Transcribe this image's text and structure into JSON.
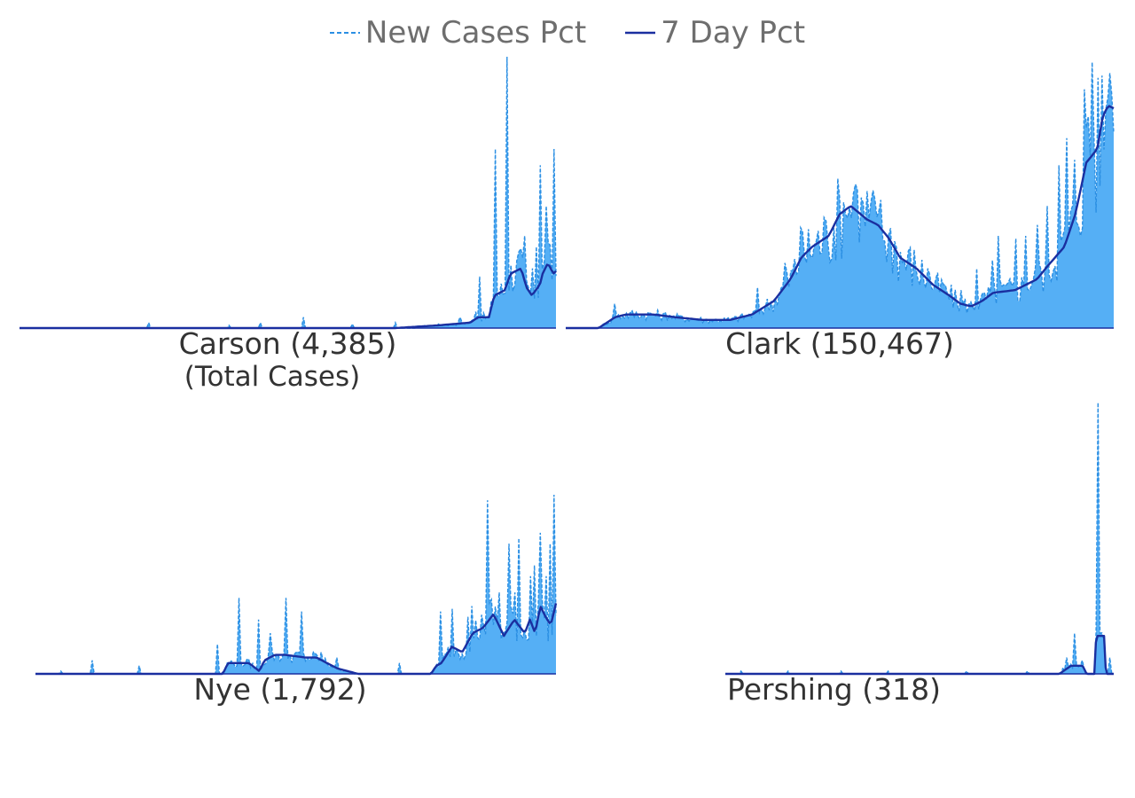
{
  "legend": {
    "daily_label": "New Cases Pct",
    "avg_label": "7 Day Pct"
  },
  "colors": {
    "fill": "#55aff5",
    "daily_line": "#2b8fe3",
    "avg_line": "#1a2fa0",
    "baseline": "#1a2fa0"
  },
  "chart_data": [
    {
      "type": "area",
      "county": "Carson",
      "label": "Carson (4,385)",
      "sublabel": "(Total Cases)",
      "ylim": [
        0,
        1
      ],
      "spikes": [
        [
          0.24,
          0.02
        ],
        [
          0.39,
          0.01
        ],
        [
          0.45,
          0.02
        ],
        [
          0.53,
          0.04
        ],
        [
          0.62,
          0.015
        ],
        [
          0.7,
          0.02
        ],
        [
          0.78,
          0.015
        ],
        [
          0.82,
          0.04
        ],
        [
          0.85,
          0.06
        ],
        [
          0.857,
          0.19
        ],
        [
          0.887,
          0.66
        ],
        [
          0.897,
          0.1
        ],
        [
          0.91,
          1.0
        ],
        [
          0.93,
          0.28
        ],
        [
          0.943,
          0.34
        ],
        [
          0.955,
          0.22
        ],
        [
          0.965,
          0.3
        ],
        [
          0.97,
          0.6
        ],
        [
          0.98,
          0.45
        ],
        [
          0.99,
          0.28
        ],
        [
          0.995,
          0.66
        ]
      ],
      "avg_knots": [
        [
          0,
          0
        ],
        [
          0.7,
          0
        ],
        [
          0.78,
          0.01
        ],
        [
          0.84,
          0.02
        ],
        [
          0.855,
          0.04
        ],
        [
          0.875,
          0.04
        ],
        [
          0.885,
          0.12
        ],
        [
          0.905,
          0.14
        ],
        [
          0.915,
          0.2
        ],
        [
          0.935,
          0.22
        ],
        [
          0.945,
          0.15
        ],
        [
          0.955,
          0.12
        ],
        [
          0.97,
          0.16
        ],
        [
          0.975,
          0.2
        ],
        [
          0.98,
          0.22
        ],
        [
          0.985,
          0.24
        ],
        [
          0.995,
          0.2
        ],
        [
          1.0,
          0.21
        ]
      ]
    },
    {
      "type": "area",
      "county": "Clark",
      "label": "Clark (150,467)",
      "ylim": [
        0,
        1
      ],
      "spikes": [
        [
          0.09,
          0.09
        ],
        [
          0.19,
          0.05
        ],
        [
          0.35,
          0.15
        ],
        [
          0.4,
          0.24
        ],
        [
          0.43,
          0.37
        ],
        [
          0.46,
          0.35
        ],
        [
          0.48,
          0.31
        ],
        [
          0.51,
          0.42
        ],
        [
          0.53,
          0.53
        ],
        [
          0.55,
          0.45
        ],
        [
          0.57,
          0.43
        ],
        [
          0.6,
          0.32
        ],
        [
          0.63,
          0.27
        ],
        [
          0.66,
          0.22
        ],
        [
          0.69,
          0.16
        ],
        [
          0.72,
          0.14
        ],
        [
          0.75,
          0.22
        ],
        [
          0.78,
          0.25
        ],
        [
          0.79,
          0.34
        ],
        [
          0.82,
          0.33
        ],
        [
          0.84,
          0.34
        ],
        [
          0.86,
          0.38
        ],
        [
          0.88,
          0.45
        ],
        [
          0.9,
          0.6
        ],
        [
          0.915,
          0.7
        ],
        [
          0.93,
          0.62
        ],
        [
          0.945,
          0.88
        ],
        [
          0.955,
          0.78
        ],
        [
          0.962,
          0.98
        ],
        [
          0.97,
          0.88
        ],
        [
          0.98,
          0.9
        ],
        [
          0.99,
          0.85
        ],
        [
          0.998,
          0.86
        ]
      ],
      "avg_knots": [
        [
          0,
          0
        ],
        [
          0.06,
          0
        ],
        [
          0.09,
          0.04
        ],
        [
          0.11,
          0.05
        ],
        [
          0.16,
          0.05
        ],
        [
          0.2,
          0.04
        ],
        [
          0.25,
          0.03
        ],
        [
          0.3,
          0.03
        ],
        [
          0.34,
          0.05
        ],
        [
          0.38,
          0.1
        ],
        [
          0.41,
          0.18
        ],
        [
          0.43,
          0.26
        ],
        [
          0.45,
          0.3
        ],
        [
          0.48,
          0.34
        ],
        [
          0.5,
          0.42
        ],
        [
          0.52,
          0.45
        ],
        [
          0.55,
          0.4
        ],
        [
          0.57,
          0.38
        ],
        [
          0.59,
          0.33
        ],
        [
          0.61,
          0.26
        ],
        [
          0.64,
          0.22
        ],
        [
          0.67,
          0.16
        ],
        [
          0.7,
          0.12
        ],
        [
          0.72,
          0.09
        ],
        [
          0.74,
          0.08
        ],
        [
          0.76,
          0.1
        ],
        [
          0.78,
          0.13
        ],
        [
          0.82,
          0.14
        ],
        [
          0.86,
          0.18
        ],
        [
          0.88,
          0.23
        ],
        [
          0.91,
          0.3
        ],
        [
          0.93,
          0.42
        ],
        [
          0.95,
          0.61
        ],
        [
          0.97,
          0.66
        ],
        [
          0.98,
          0.78
        ],
        [
          0.99,
          0.82
        ],
        [
          1.0,
          0.81
        ]
      ]
    },
    {
      "type": "area",
      "county": "Nye",
      "label": "Nye (1,792)",
      "ylim": [
        0,
        1
      ],
      "spikes": [
        [
          0.05,
          0.01
        ],
        [
          0.11,
          0.05
        ],
        [
          0.2,
          0.03
        ],
        [
          0.35,
          0.11
        ],
        [
          0.39,
          0.28
        ],
        [
          0.43,
          0.2
        ],
        [
          0.45,
          0.15
        ],
        [
          0.48,
          0.28
        ],
        [
          0.51,
          0.23
        ],
        [
          0.55,
          0.08
        ],
        [
          0.58,
          0.06
        ],
        [
          0.7,
          0.04
        ],
        [
          0.78,
          0.23
        ],
        [
          0.8,
          0.24
        ],
        [
          0.83,
          0.21
        ],
        [
          0.84,
          0.25
        ],
        [
          0.86,
          0.18
        ],
        [
          0.87,
          0.64
        ],
        [
          0.89,
          0.3
        ],
        [
          0.91,
          0.48
        ],
        [
          0.92,
          0.3
        ],
        [
          0.93,
          0.5
        ],
        [
          0.95,
          0.36
        ],
        [
          0.96,
          0.4
        ],
        [
          0.97,
          0.52
        ],
        [
          0.98,
          0.36
        ],
        [
          0.99,
          0.48
        ],
        [
          0.995,
          0.66
        ]
      ],
      "avg_knots": [
        [
          0,
          0
        ],
        [
          0.36,
          0
        ],
        [
          0.37,
          0.04
        ],
        [
          0.39,
          0.04
        ],
        [
          0.41,
          0.04
        ],
        [
          0.43,
          0.01
        ],
        [
          0.44,
          0.05
        ],
        [
          0.46,
          0.07
        ],
        [
          0.48,
          0.07
        ],
        [
          0.52,
          0.06
        ],
        [
          0.54,
          0.06
        ],
        [
          0.56,
          0.04
        ],
        [
          0.58,
          0.02
        ],
        [
          0.6,
          0.01
        ],
        [
          0.62,
          0
        ],
        [
          0.76,
          0
        ],
        [
          0.77,
          0.03
        ],
        [
          0.78,
          0.04
        ],
        [
          0.8,
          0.1
        ],
        [
          0.82,
          0.08
        ],
        [
          0.84,
          0.15
        ],
        [
          0.86,
          0.17
        ],
        [
          0.88,
          0.22
        ],
        [
          0.9,
          0.14
        ],
        [
          0.92,
          0.2
        ],
        [
          0.94,
          0.15
        ],
        [
          0.95,
          0.2
        ],
        [
          0.96,
          0.15
        ],
        [
          0.97,
          0.25
        ],
        [
          0.98,
          0.21
        ],
        [
          0.99,
          0.18
        ],
        [
          1.0,
          0.26
        ]
      ]
    },
    {
      "type": "area",
      "county": "Pershing",
      "label": "Pershing (318)",
      "ylim": [
        0,
        1
      ],
      "spikes": [
        [
          0.04,
          0.01
        ],
        [
          0.16,
          0.01
        ],
        [
          0.3,
          0.01
        ],
        [
          0.42,
          0.01
        ],
        [
          0.62,
          0.01
        ],
        [
          0.78,
          0.01
        ],
        [
          0.87,
          0.02
        ],
        [
          0.88,
          0.06
        ],
        [
          0.9,
          0.15
        ],
        [
          0.92,
          0.05
        ],
        [
          0.96,
          1.0
        ],
        [
          0.97,
          0.1
        ],
        [
          0.99,
          0.06
        ]
      ],
      "avg_knots": [
        [
          0,
          0
        ],
        [
          0.86,
          0
        ],
        [
          0.89,
          0.03
        ],
        [
          0.92,
          0.03
        ],
        [
          0.93,
          0
        ],
        [
          0.95,
          0
        ],
        [
          0.955,
          0.14
        ],
        [
          0.975,
          0.14
        ],
        [
          0.98,
          0
        ],
        [
          1.0,
          0
        ]
      ]
    }
  ]
}
